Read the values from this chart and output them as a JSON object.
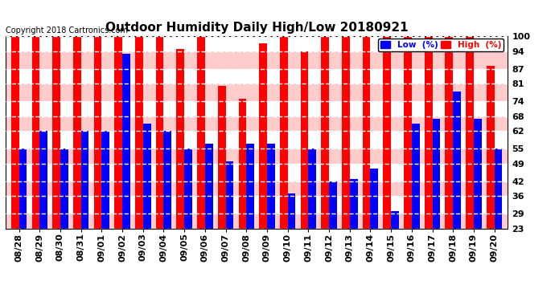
{
  "title": "Outdoor Humidity Daily High/Low 20180921",
  "copyright": "Copyright 2018 Cartronics.com",
  "background_color": "#ffffff",
  "plot_bg_color": "#ffffff",
  "bar_color_high": "#ff0000",
  "bar_color_low": "#0000ff",
  "legend_low_color": "#0000ff",
  "legend_high_color": "#ff0000",
  "ylim_min": 23,
  "ylim_max": 100,
  "yticks": [
    23,
    29,
    36,
    42,
    49,
    55,
    62,
    68,
    74,
    81,
    87,
    94,
    100
  ],
  "categories": [
    "08/28",
    "08/29",
    "08/30",
    "08/31",
    "09/01",
    "09/02",
    "09/03",
    "09/04",
    "09/05",
    "09/06",
    "09/07",
    "09/08",
    "09/09",
    "09/10",
    "09/11",
    "09/12",
    "09/13",
    "09/14",
    "09/15",
    "09/16",
    "09/17",
    "09/18",
    "09/19",
    "09/20"
  ],
  "high_values": [
    100,
    100,
    100,
    100,
    100,
    100,
    100,
    100,
    95,
    100,
    80,
    75,
    97,
    100,
    94,
    100,
    100,
    100,
    100,
    100,
    100,
    100,
    100,
    88
  ],
  "low_values": [
    55,
    62,
    55,
    62,
    62,
    93,
    65,
    62,
    55,
    57,
    50,
    57,
    57,
    37,
    55,
    42,
    43,
    47,
    30,
    65,
    67,
    78,
    67,
    55
  ],
  "stripe_colors": [
    "#ffcccc",
    "#ffffff"
  ],
  "title_fontsize": 11,
  "tick_fontsize": 8,
  "copyright_fontsize": 7
}
